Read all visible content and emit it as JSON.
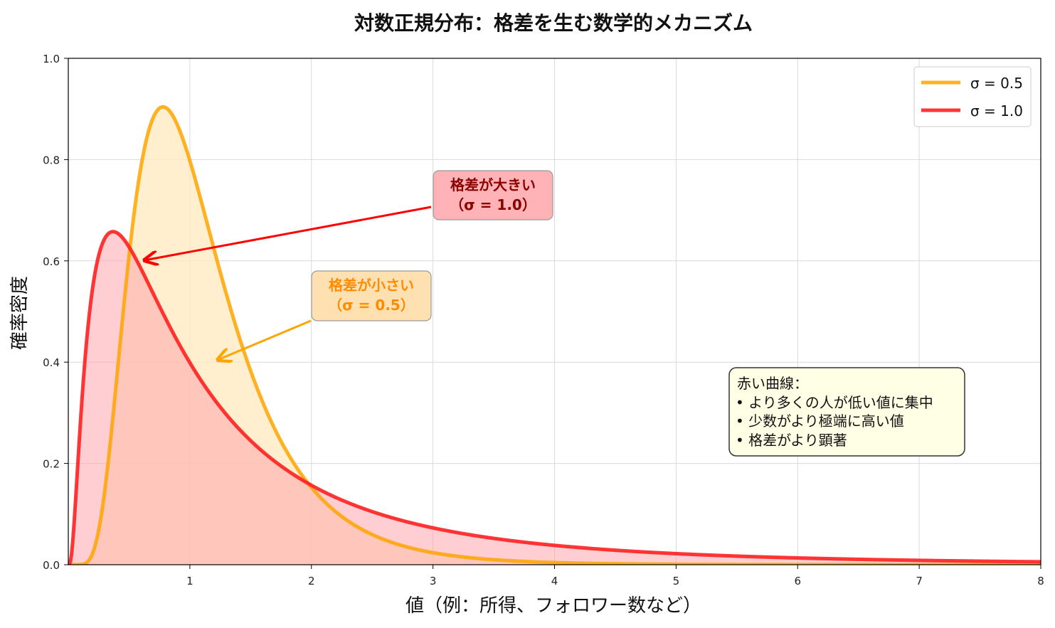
{
  "chart_data": {
    "type": "area",
    "title": "対数正規分布：格差を生む数学的メカニズム",
    "xlabel": "値（例：所得、フォロワー数など）",
    "ylabel": "確率密度",
    "xlim": [
      0,
      8
    ],
    "ylim": [
      0,
      1.0
    ],
    "xticks": [
      "1",
      "2",
      "3",
      "4",
      "5",
      "6",
      "7",
      "8"
    ],
    "yticks": [
      "0.0",
      "0.2",
      "0.4",
      "0.6",
      "0.8",
      "1.0"
    ],
    "grid": true,
    "legend_position": "top-right",
    "series": [
      {
        "name": "σ = 0.5",
        "distribution": "lognormal",
        "mu": 0,
        "sigma": 0.5,
        "color": "#FFA500",
        "fill": "#FFE9BD",
        "peak": {
          "x": 0.78,
          "y": 0.9
        }
      },
      {
        "name": "σ = 1.0",
        "distribution": "lognormal",
        "mu": 0,
        "sigma": 1.0,
        "color": "#FF2020",
        "fill": "#FF9EA8",
        "peak": {
          "x": 0.37,
          "y": 0.66
        }
      }
    ],
    "annotations": [
      {
        "lines": [
          "格差が大きい",
          "（σ = 1.0）"
        ],
        "color": "#8B0000",
        "box_color": "#FFB3B6",
        "arrow_color": "#FF0000",
        "arrow_target": {
          "x": 0.6,
          "y": 0.6
        },
        "text_anchor": {
          "x": 2.5,
          "y": 0.73
        }
      },
      {
        "lines": [
          "格差が小さい",
          "（σ = 0.5）"
        ],
        "color": "#FF8C00",
        "box_color": "#FFE0B0",
        "arrow_color": "#FFA500",
        "arrow_target": {
          "x": 1.2,
          "y": 0.4
        },
        "text_anchor": {
          "x": 2.5,
          "y": 0.53
        }
      }
    ],
    "info_box": {
      "title": "赤い曲線：",
      "items": [
        "• より多くの人が低い値に集中",
        "• 少数がより極端に高い値",
        "• 格差がより顕著"
      ]
    }
  }
}
